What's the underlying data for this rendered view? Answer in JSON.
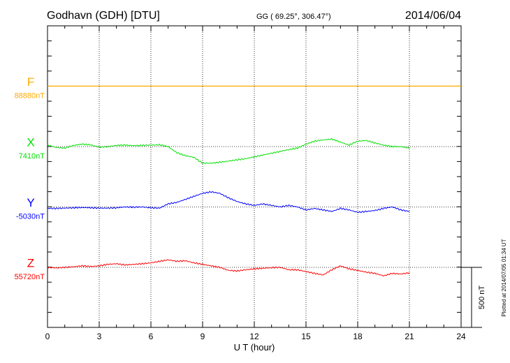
{
  "header": {
    "station": "Godhavn (GDH)  [DTU]",
    "coords": "GG ( 69.25°, 306.47°)",
    "date": "2014/06/04"
  },
  "plotted_note": "Plotted at 2014/07/05 01:34  UT",
  "scale_label": "500 nT",
  "chart_data": {
    "type": "line",
    "xlabel": "U T (hour)",
    "xlim": [
      0,
      24
    ],
    "x_ticks": [
      "0",
      "3",
      "6",
      "9",
      "12",
      "15",
      "18",
      "21",
      "24"
    ],
    "units_per_gridline": 100,
    "grid": true,
    "series": [
      {
        "name": "F",
        "baseline_label": "88880nT",
        "color": "#ffaa00",
        "x": [
          0,
          21
        ],
        "y": [
          0,
          0
        ]
      },
      {
        "name": "X",
        "baseline_label": "7410nT",
        "color": "#00e000",
        "x": [
          0,
          0.5,
          1,
          1.5,
          2,
          2.5,
          3,
          3.5,
          4,
          4.5,
          5,
          5.5,
          6,
          6.5,
          7,
          7.5,
          8,
          8.5,
          9,
          9.5,
          10,
          10.5,
          11,
          11.5,
          12,
          12.5,
          13,
          13.5,
          14,
          14.5,
          15,
          15.5,
          16,
          16.5,
          17,
          17.5,
          18,
          18.5,
          19,
          19.5,
          20,
          20.5,
          21
        ],
        "y": [
          5,
          -3,
          -5,
          4,
          8,
          6,
          -2,
          0,
          4,
          5,
          3,
          4,
          5,
          6,
          0,
          -20,
          -30,
          -36,
          -55,
          -55,
          -52,
          -48,
          -44,
          -40,
          -34,
          -28,
          -22,
          -16,
          -10,
          -5,
          8,
          18,
          22,
          25,
          15,
          5,
          18,
          20,
          12,
          5,
          0,
          0,
          -5
        ]
      },
      {
        "name": "Y",
        "baseline_label": "-5030nT",
        "color": "#0000ff",
        "x": [
          0,
          0.5,
          1,
          1.5,
          2,
          2.5,
          3,
          3.5,
          4,
          4.5,
          5,
          5.5,
          6,
          6.5,
          7,
          7.5,
          8,
          8.5,
          9,
          9.5,
          10,
          10.5,
          11,
          11.5,
          12,
          12.5,
          13,
          13.5,
          14,
          14.5,
          15,
          15.5,
          16,
          16.5,
          17,
          17.5,
          18,
          18.5,
          19,
          19.5,
          20,
          20.5,
          21
        ],
        "y": [
          -5,
          -5,
          -4,
          -3,
          -2,
          -3,
          -4,
          -4,
          -3,
          0,
          -1,
          0,
          -3,
          -4,
          10,
          15,
          25,
          35,
          45,
          50,
          45,
          30,
          18,
          10,
          5,
          10,
          5,
          0,
          5,
          0,
          -10,
          -5,
          -10,
          -15,
          -5,
          -10,
          -18,
          -15,
          -12,
          -5,
          0,
          -10,
          -15
        ]
      },
      {
        "name": "Z",
        "baseline_label": "55720nT",
        "color": "#ff0000",
        "x": [
          0,
          0.5,
          1,
          1.5,
          2,
          2.5,
          3,
          3.5,
          4,
          4.5,
          5,
          5.5,
          6,
          6.5,
          7,
          7.5,
          8,
          8.5,
          9,
          9.5,
          10,
          10.5,
          11,
          11.5,
          12,
          12.5,
          13,
          13.5,
          14,
          14.5,
          15,
          15.5,
          16,
          16.5,
          17,
          17.5,
          18,
          18.5,
          19,
          19.5,
          20,
          20.5,
          21
        ],
        "y": [
          0,
          -2,
          0,
          2,
          5,
          3,
          5,
          10,
          12,
          8,
          10,
          12,
          15,
          20,
          25,
          20,
          22,
          15,
          10,
          5,
          0,
          -10,
          -12,
          -8,
          -5,
          -3,
          -1,
          0,
          -8,
          -8,
          -14,
          -20,
          -25,
          -8,
          5,
          -5,
          -10,
          -16,
          -20,
          -28,
          -20,
          -22,
          -18
        ]
      }
    ]
  }
}
